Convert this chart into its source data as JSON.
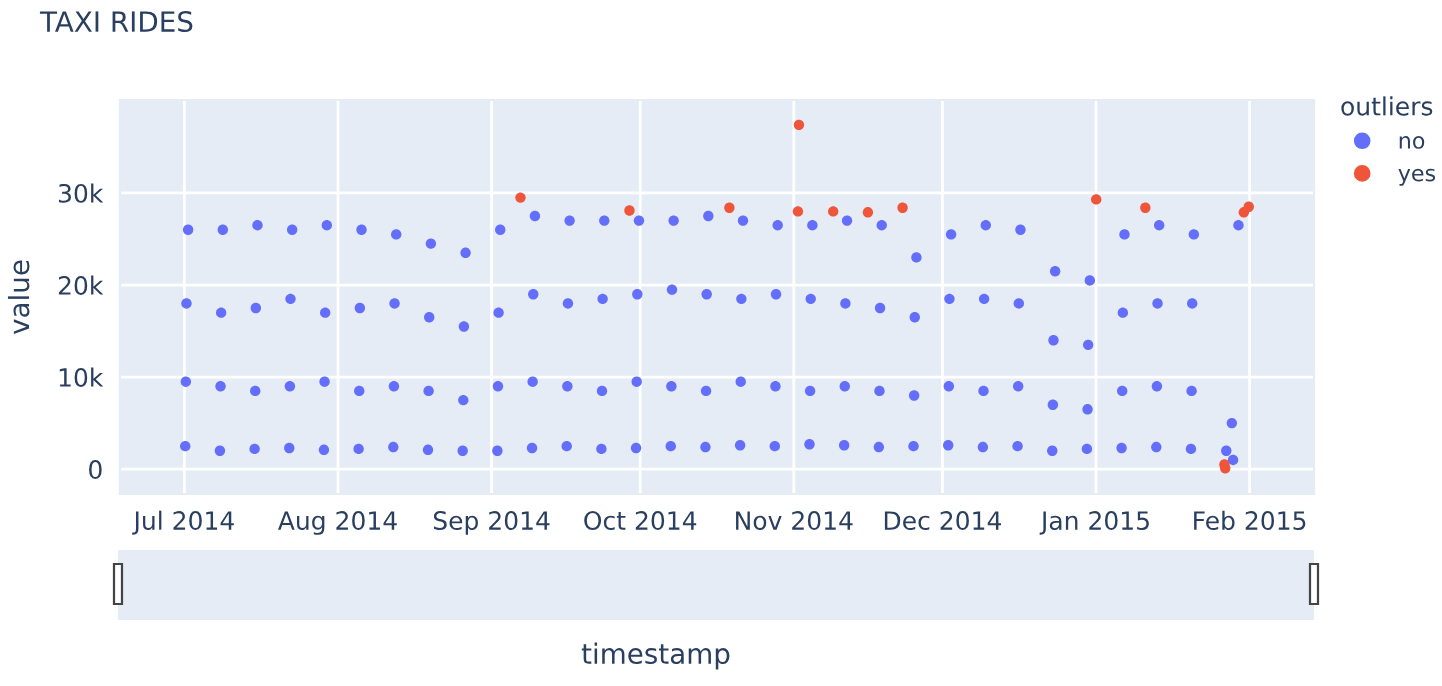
{
  "chart_data": {
    "type": "scatter",
    "title": "TAXI RIDES",
    "xlabel": "timestamp",
    "ylabel": "value",
    "legend_title": "outliers",
    "xlim": [
      "2014-06-18",
      "2015-02-14"
    ],
    "ylim": [
      -2700,
      40100
    ],
    "xticks": [
      {
        "value": "2014-07-01",
        "label": "Jul 2014"
      },
      {
        "value": "2014-08-01",
        "label": "Aug 2014"
      },
      {
        "value": "2014-09-01",
        "label": "Sep 2014"
      },
      {
        "value": "2014-10-01",
        "label": "Oct 2014"
      },
      {
        "value": "2014-11-01",
        "label": "Nov 2014"
      },
      {
        "value": "2014-12-01",
        "label": "Dec 2014"
      },
      {
        "value": "2015-01-01",
        "label": "Jan 2015"
      },
      {
        "value": "2015-02-01",
        "label": "Feb 2015"
      }
    ],
    "yticks": [
      0,
      {
        "value": 10000,
        "label": "10k"
      },
      {
        "value": 20000,
        "label": "20k"
      },
      {
        "value": 30000,
        "label": "30k"
      }
    ],
    "grid": true,
    "legend": "top right",
    "marker": "circle",
    "series": [
      {
        "name": "no",
        "color": "#636efa",
        "x": [
          "2014-07-01T18:00",
          "2014-07-01T10:00",
          "2014-07-01T07:00",
          "2014-07-01T04:00",
          "2014-07-08T18:00",
          "2014-07-08T10:00",
          "2014-07-08T07:00",
          "2014-07-08T04:00",
          "2014-07-15T18:00",
          "2014-07-15T10:00",
          "2014-07-15T07:00",
          "2014-07-15T04:00",
          "2014-07-22T18:00",
          "2014-07-22T10:00",
          "2014-07-22T07:00",
          "2014-07-22T04:00",
          "2014-07-29T18:00",
          "2014-07-29T10:00",
          "2014-07-29T07:00",
          "2014-07-29T04:00",
          "2014-08-05T18:00",
          "2014-08-05T10:00",
          "2014-08-05T07:00",
          "2014-08-05T04:00",
          "2014-08-12T18:00",
          "2014-08-12T10:00",
          "2014-08-12T07:00",
          "2014-08-12T04:00",
          "2014-08-19T18:00",
          "2014-08-19T10:00",
          "2014-08-19T07:00",
          "2014-08-19T04:00",
          "2014-08-26T18:00",
          "2014-08-26T10:00",
          "2014-08-26T07:00",
          "2014-08-26T04:00",
          "2014-09-02T18:00",
          "2014-09-02T10:00",
          "2014-09-02T07:00",
          "2014-09-02T04:00",
          "2014-09-09T18:00",
          "2014-09-09T10:00",
          "2014-09-09T07:00",
          "2014-09-09T04:00",
          "2014-09-16T18:00",
          "2014-09-16T10:00",
          "2014-09-16T07:00",
          "2014-09-16T04:00",
          "2014-09-23T18:00",
          "2014-09-23T10:00",
          "2014-09-23T07:00",
          "2014-09-23T04:00",
          "2014-09-30T18:00",
          "2014-09-30T10:00",
          "2014-09-30T07:00",
          "2014-09-30T04:00",
          "2014-10-07T18:00",
          "2014-10-07T10:00",
          "2014-10-07T07:00",
          "2014-10-07T04:00",
          "2014-10-14T18:00",
          "2014-10-14T10:00",
          "2014-10-14T07:00",
          "2014-10-14T04:00",
          "2014-10-21T18:00",
          "2014-10-21T10:00",
          "2014-10-21T07:00",
          "2014-10-21T04:00",
          "2014-10-28T18:00",
          "2014-10-28T10:00",
          "2014-10-28T07:00",
          "2014-10-28T04:00",
          "2014-11-04T18:00",
          "2014-11-04T10:00",
          "2014-11-04T07:00",
          "2014-11-04T04:00",
          "2014-11-11T18:00",
          "2014-11-11T10:00",
          "2014-11-11T07:00",
          "2014-11-11T04:00",
          "2014-11-18T18:00",
          "2014-11-18T10:00",
          "2014-11-18T07:00",
          "2014-11-18T04:00",
          "2014-11-25T18:00",
          "2014-11-25T10:00",
          "2014-11-25T07:00",
          "2014-11-25T04:00",
          "2014-12-02T18:00",
          "2014-12-02T10:00",
          "2014-12-02T07:00",
          "2014-12-02T04:00",
          "2014-12-09T18:00",
          "2014-12-09T10:00",
          "2014-12-09T07:00",
          "2014-12-09T04:00",
          "2014-12-16T18:00",
          "2014-12-16T10:00",
          "2014-12-16T07:00",
          "2014-12-16T04:00",
          "2014-12-23T18:00",
          "2014-12-23T10:00",
          "2014-12-23T07:00",
          "2014-12-23T04:00",
          "2014-12-30T18:00",
          "2014-12-30T10:00",
          "2014-12-30T07:00",
          "2014-12-30T04:00",
          "2015-01-06T18:00",
          "2015-01-06T10:00",
          "2015-01-06T07:00",
          "2015-01-06T04:00",
          "2015-01-13T18:00",
          "2015-01-13T10:00",
          "2015-01-13T07:00",
          "2015-01-13T04:00",
          "2015-01-20T18:00",
          "2015-01-20T10:00",
          "2015-01-20T07:00",
          "2015-01-20T04:00",
          "2015-01-29T18:00",
          "2015-01-28T10:00",
          "2015-01-27T07:00",
          "2015-01-28T16:00"
        ],
        "values": [
          26000,
          18000,
          9500,
          2500,
          26000,
          17000,
          9000,
          2000,
          26500,
          17500,
          8500,
          2200,
          26000,
          18500,
          9000,
          2300,
          26500,
          17000,
          9500,
          2100,
          26000,
          17500,
          8500,
          2200,
          25500,
          18000,
          9000,
          2400,
          24500,
          16500,
          8500,
          2100,
          23500,
          15500,
          7500,
          2000,
          26000,
          17000,
          9000,
          2000,
          27500,
          19000,
          9500,
          2300,
          27000,
          18000,
          9000,
          2500,
          27000,
          18500,
          8500,
          2200,
          27000,
          19000,
          9500,
          2300,
          27000,
          19500,
          9000,
          2500,
          27500,
          19000,
          8500,
          2400,
          27000,
          18500,
          9500,
          2600,
          26500,
          19000,
          9000,
          2500,
          26500,
          18500,
          8500,
          2700,
          27000,
          18000,
          9000,
          2600,
          26500,
          17500,
          8500,
          2400,
          23000,
          16500,
          8000,
          2500,
          25500,
          18500,
          9000,
          2600,
          26500,
          18500,
          8500,
          2400,
          26000,
          18000,
          9000,
          2500,
          21500,
          14000,
          7000,
          2000,
          20500,
          13500,
          6500,
          2200,
          25500,
          17000,
          8500,
          2300,
          26500,
          18000,
          9000,
          2400,
          25500,
          18000,
          8500,
          2200,
          26500,
          5000,
          2000,
          1000
        ]
      },
      {
        "name": "yes",
        "color": "#ef553b",
        "x": [
          "2014-09-06T20:00",
          "2014-09-28T20:00",
          "2014-10-19T00:00",
          "2014-11-02T01:00",
          "2014-11-01T20:00",
          "2014-11-08T23:00",
          "2014-11-15T23:00",
          "2014-11-22T23:00",
          "2015-01-01T01:00",
          "2015-01-10T23:00",
          "2015-01-27T02:00",
          "2015-01-26T22:00",
          "2015-01-30T20:00",
          "2015-01-31T20:00"
        ],
        "values": [
          29500,
          28100,
          28400,
          37400,
          28000,
          28000,
          27900,
          28400,
          29300,
          28400,
          100,
          500,
          27900,
          28500
        ]
      }
    ]
  }
}
